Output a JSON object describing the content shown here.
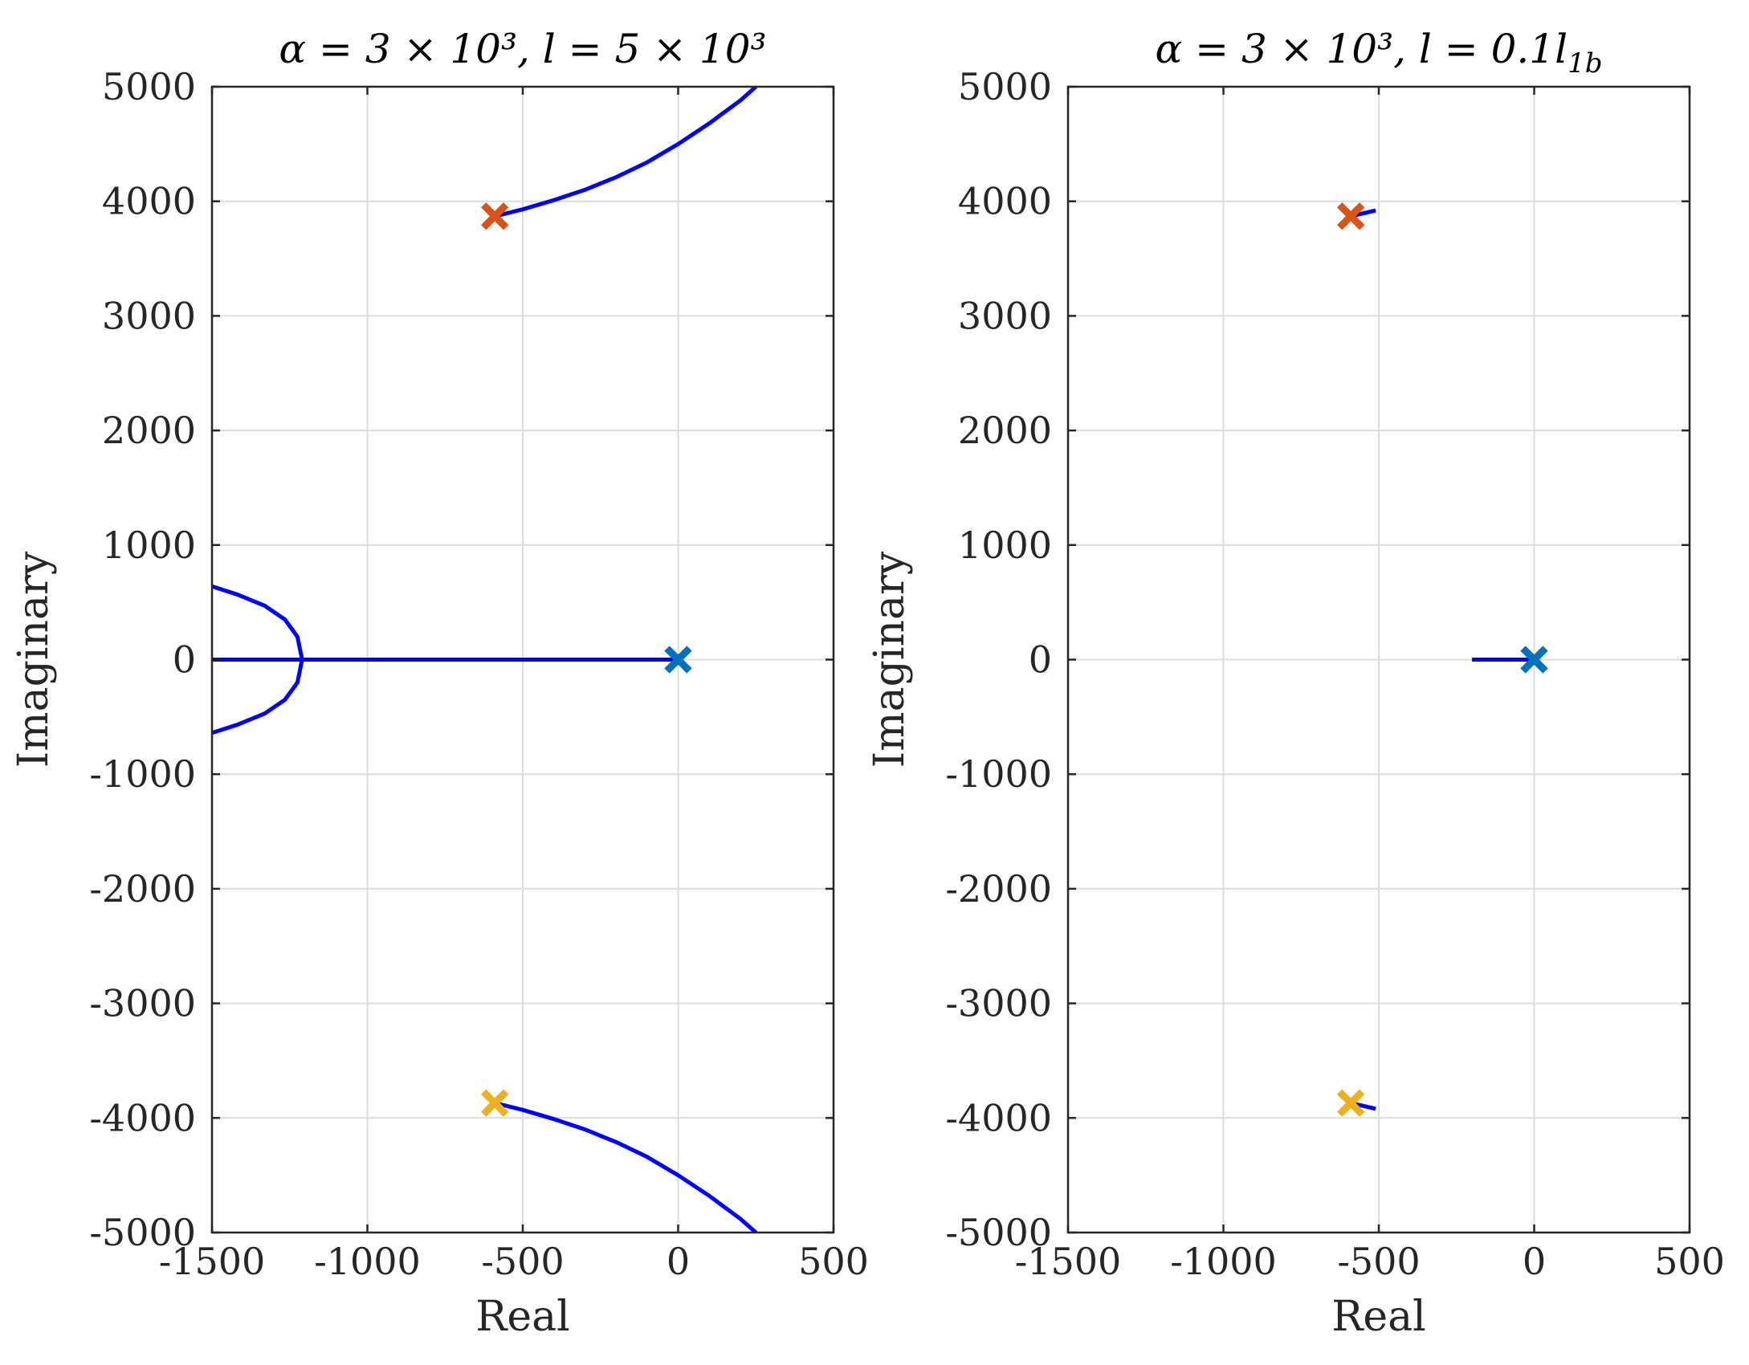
{
  "chart_data": [
    {
      "type": "scatter",
      "subtype": "root-locus",
      "title": "α = 3 × 10³, l = 5 × 10³",
      "xlabel": "Real",
      "ylabel": "Imaginary",
      "xlim": [
        -1500,
        500
      ],
      "ylim": [
        -5000,
        5000
      ],
      "xticks": [
        -1500,
        -1000,
        -500,
        0,
        500
      ],
      "yticks": [
        -5000,
        -4000,
        -3000,
        -2000,
        -1000,
        0,
        1000,
        2000,
        3000,
        4000,
        5000
      ],
      "grid": true,
      "poles": [
        {
          "name": "pole-origin",
          "re": 0,
          "im": 0,
          "color": "#0072BD"
        },
        {
          "name": "pole-upper",
          "re": -590,
          "im": 3870,
          "color": "#D95319"
        },
        {
          "name": "pole-lower",
          "re": -590,
          "im": -3870,
          "color": "#EDB120"
        }
      ],
      "branches": [
        {
          "name": "branch-real-axis",
          "color": "#0000FF",
          "points": [
            [
              0,
              0
            ],
            [
              -1210,
              0
            ],
            [
              -1500,
              0
            ]
          ]
        },
        {
          "name": "branch-breakaway-upper",
          "color": "#0000FF",
          "points": [
            [
              -1210,
              0
            ],
            [
              -1225,
              200
            ],
            [
              -1265,
              350
            ],
            [
              -1330,
              470
            ],
            [
              -1420,
              570
            ],
            [
              -1500,
              640
            ]
          ]
        },
        {
          "name": "branch-breakaway-lower",
          "color": "#0000FF",
          "points": [
            [
              -1210,
              0
            ],
            [
              -1225,
              -200
            ],
            [
              -1265,
              -350
            ],
            [
              -1330,
              -470
            ],
            [
              -1420,
              -570
            ],
            [
              -1500,
              -640
            ]
          ]
        },
        {
          "name": "branch-upper",
          "color": "#0000FF",
          "points": [
            [
              -590,
              3870
            ],
            [
              -500,
              3930
            ],
            [
              -400,
              4010
            ],
            [
              -300,
              4100
            ],
            [
              -200,
              4210
            ],
            [
              -100,
              4340
            ],
            [
              0,
              4500
            ],
            [
              100,
              4680
            ],
            [
              200,
              4880
            ],
            [
              250,
              5000
            ]
          ]
        },
        {
          "name": "branch-lower",
          "color": "#0000FF",
          "points": [
            [
              -590,
              -3870
            ],
            [
              -500,
              -3930
            ],
            [
              -400,
              -4010
            ],
            [
              -300,
              -4100
            ],
            [
              -200,
              -4210
            ],
            [
              -100,
              -4340
            ],
            [
              0,
              -4500
            ],
            [
              100,
              -4680
            ],
            [
              200,
              -4880
            ],
            [
              250,
              -5000
            ]
          ]
        }
      ]
    },
    {
      "type": "scatter",
      "subtype": "root-locus",
      "title": "α = 3 × 10³, l = 0.1l",
      "title_subscript": "1b",
      "xlabel": "Real",
      "ylabel": "Imaginary",
      "xlim": [
        -1500,
        500
      ],
      "ylim": [
        -5000,
        5000
      ],
      "xticks": [
        -1500,
        -1000,
        -500,
        0,
        500
      ],
      "yticks": [
        -5000,
        -4000,
        -3000,
        -2000,
        -1000,
        0,
        1000,
        2000,
        3000,
        4000,
        5000
      ],
      "grid": true,
      "poles": [
        {
          "name": "pole-origin",
          "re": 0,
          "im": 0,
          "color": "#0072BD"
        },
        {
          "name": "pole-upper",
          "re": -590,
          "im": 3870,
          "color": "#D95319"
        },
        {
          "name": "pole-lower",
          "re": -590,
          "im": -3870,
          "color": "#EDB120"
        }
      ],
      "branches": [
        {
          "name": "branch-real-axis",
          "color": "#0000FF",
          "points": [
            [
              0,
              0
            ],
            [
              -200,
              0
            ]
          ]
        },
        {
          "name": "branch-upper",
          "color": "#0000FF",
          "points": [
            [
              -590,
              3870
            ],
            [
              -510,
              3920
            ]
          ]
        },
        {
          "name": "branch-lower",
          "color": "#0000FF",
          "points": [
            [
              -590,
              -3870
            ],
            [
              -510,
              -3920
            ]
          ]
        }
      ]
    }
  ]
}
